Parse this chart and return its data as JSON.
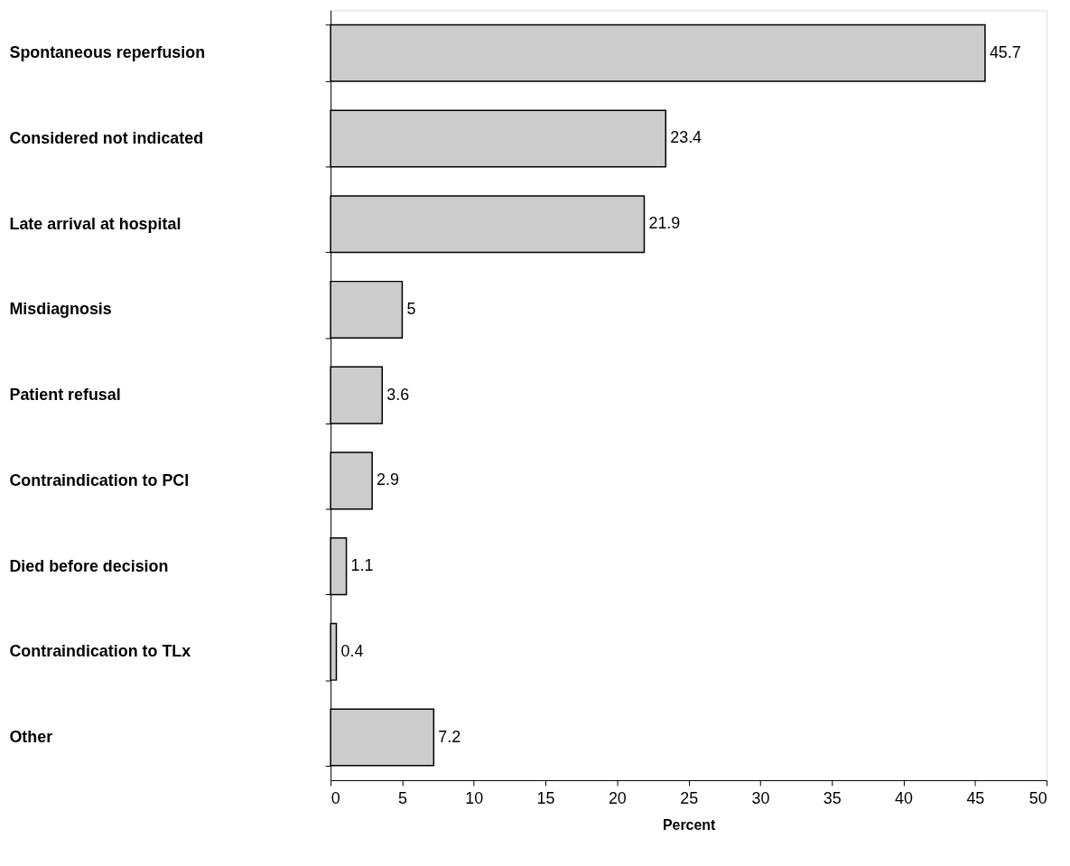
{
  "chart_data": {
    "type": "bar",
    "orientation": "horizontal",
    "xlabel": "Percent",
    "categories": [
      "Spontaneous reperfusion",
      "Considered not indicated",
      "Late arrival at hospital",
      "Misdiagnosis",
      "Patient refusal",
      "Contraindication to PCI",
      "Died before decision",
      "Contraindication to TLx",
      "Other"
    ],
    "values": [
      45.7,
      23.4,
      21.9,
      5,
      3.6,
      2.9,
      1.1,
      0.4,
      7.2
    ],
    "color": "#cccccc",
    "data_labels": true,
    "grid": false,
    "xlim": [
      0,
      50
    ],
    "xticks": [
      0,
      5,
      10,
      15,
      20,
      25,
      30,
      35,
      40,
      45,
      50
    ]
  }
}
